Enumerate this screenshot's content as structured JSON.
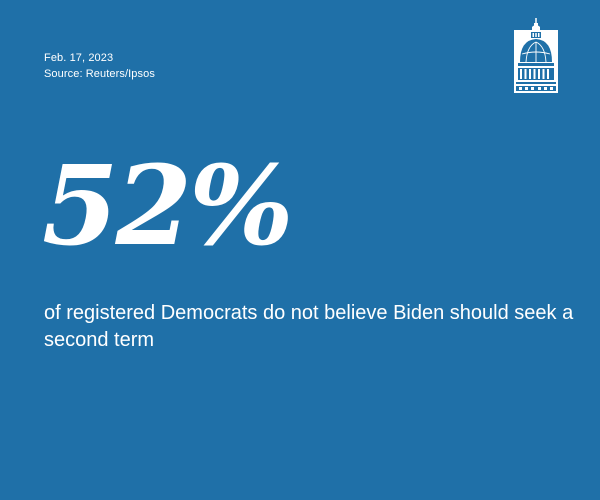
{
  "meta": {
    "date": "Feb. 17, 2023",
    "source": "Source: Reuters/Ipsos"
  },
  "headline": {
    "stat": "52%",
    "caption": "of registered Democrats do not believe Biden should seek a second term"
  },
  "logo": {
    "icon": "capitol-dome-icon"
  },
  "colors": {
    "background": "#1f70a8",
    "text": "#ffffff"
  }
}
